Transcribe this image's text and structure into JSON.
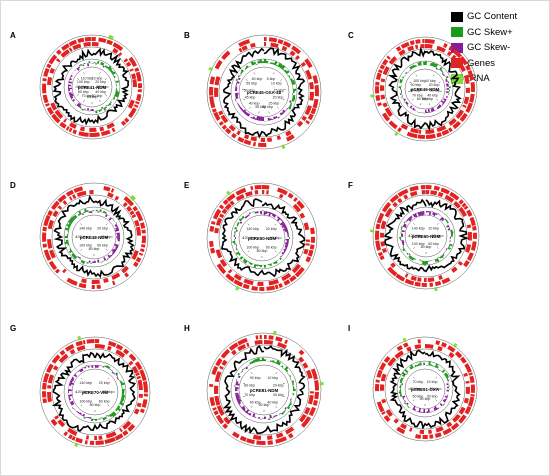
{
  "legend": [
    {
      "label": "GC Content",
      "color": "#000000"
    },
    {
      "label": "GC Skew+",
      "color": "#1a9a1a"
    },
    {
      "label": "GC Skew-",
      "color": "#8b1a9b"
    },
    {
      "label": "Genes",
      "color": "#e32222"
    },
    {
      "label": "tRNA",
      "color": "#7dde3a"
    }
  ],
  "panels": [
    {
      "letter": "A",
      "plasmid": "pCRE41-NDM",
      "ticks": [
        "10 kbp",
        "20 kbp",
        "30 kbp",
        "40 kbp",
        "50 kbp",
        "60 kbp",
        "70 kbp",
        "80 kbp",
        "90 kbp",
        "100 kbp",
        "110 kbp"
      ]
    },
    {
      "letter": "B",
      "plasmid": "pCRE45-OXA-48",
      "ticks": [
        "5 kbp",
        "10 kbp",
        "15 kbp",
        "20 kbp",
        "25 kbp",
        "30 kbp",
        "35 kbp",
        "40 kbp",
        "45 kbp",
        "50 kbp",
        "55 kbp",
        "60 kbp"
      ]
    },
    {
      "letter": "C",
      "plasmid": "pCRE46-NDM",
      "ticks": [
        "10 kbp",
        "20 kbp",
        "30 kbp",
        "40 kbp",
        "50 kbp",
        "60 kbp",
        "70 kbp",
        "80 kbp",
        "90 kbp",
        "100 kbp"
      ]
    },
    {
      "letter": "D",
      "plasmid": "pCRE48-NDM",
      "ticks": [
        "20 kbp",
        "40 kbp",
        "60 kbp",
        "80 kbp",
        "100 kbp",
        "120 kbp",
        "140 kbp"
      ]
    },
    {
      "letter": "E",
      "plasmid": "pCRE50-NDM",
      "ticks": [
        "20 kbp",
        "40 kbp",
        "60 kbp",
        "80 kbp",
        "100 kbp",
        "120 kbp",
        "140 kbp"
      ]
    },
    {
      "letter": "F",
      "plasmid": "pCRE60-NDM",
      "ticks": [
        "20 kbp",
        "40 kbp",
        "60 kbp",
        "80 kbp",
        "100 kbp",
        "120 kbp",
        "140 kbp"
      ]
    },
    {
      "letter": "G",
      "plasmid": "pCRE70-VIM",
      "ticks": [
        "20 kbp",
        "40 kbp",
        "60 kbp",
        "80 kbp",
        "100 kbp",
        "120 kbp",
        "140 kbp"
      ]
    },
    {
      "letter": "H",
      "plasmid": "pCRE81-NDM",
      "ticks": [
        "10 kbp",
        "20 kbp",
        "30 kbp",
        "40 kbp",
        "50 kbp",
        "60 kbp",
        "70 kbp",
        "80 kbp",
        "90 kbp"
      ]
    },
    {
      "letter": "I",
      "plasmid": "pCRE91-OXA",
      "ticks": [
        "10 kbp",
        "20 kbp",
        "30 kbp",
        "40 kbp",
        "50 kbp",
        "60 kbp",
        "70 kbp"
      ]
    }
  ]
}
